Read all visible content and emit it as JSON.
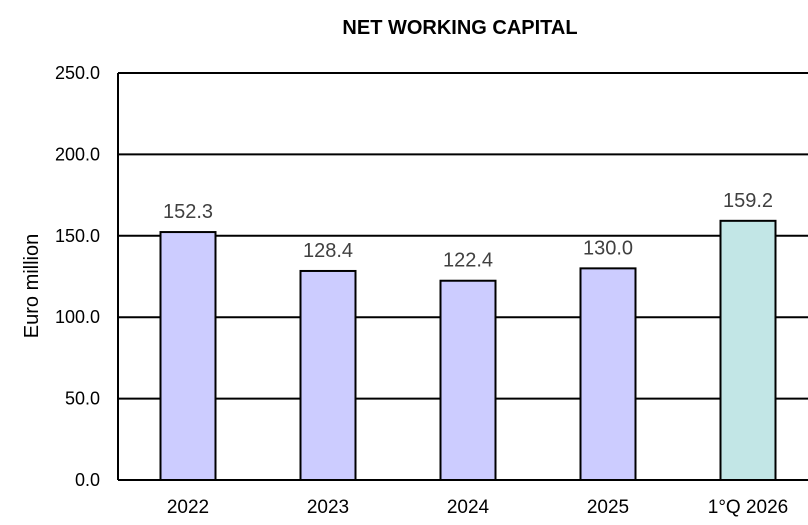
{
  "chart_data": {
    "type": "bar",
    "title": "NET WORKING CAPITAL",
    "xlabel": "",
    "ylabel": "Euro million",
    "ylim": [
      0,
      250
    ],
    "yticks": [
      "0.0",
      "50.0",
      "100.0",
      "150.0",
      "200.0",
      "250.0"
    ],
    "ytick_values": [
      0,
      50,
      100,
      150,
      200,
      250
    ],
    "categories": [
      "2022",
      "2023",
      "2024",
      "2025",
      "1°Q 2026"
    ],
    "values": [
      152.3,
      128.4,
      122.4,
      130.0,
      159.2
    ],
    "data_labels": [
      "152.3",
      "128.4",
      "122.4",
      "130.0",
      "159.2"
    ],
    "bar_colors": [
      "#ccccff",
      "#ccccff",
      "#ccccff",
      "#ccccff",
      "#c2e6e6"
    ],
    "grid": true,
    "legend": "none"
  }
}
